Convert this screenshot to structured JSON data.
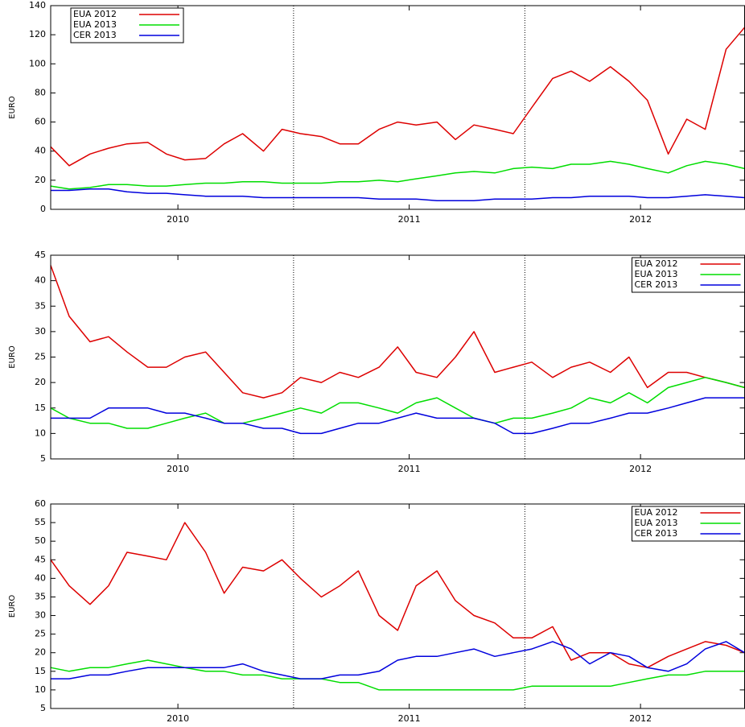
{
  "chart_data": [
    {
      "type": "line",
      "ylabel": "EURO",
      "legend": "top-left",
      "x": [
        2009.95,
        2010.03,
        2010.12,
        2010.2,
        2010.28,
        2010.37,
        2010.45,
        2010.53,
        2010.62,
        2010.7,
        2010.78,
        2010.87,
        2010.95,
        2011.03,
        2011.12,
        2011.2,
        2011.28,
        2011.37,
        2011.45,
        2011.53,
        2011.62,
        2011.7,
        2011.78,
        2011.87,
        2011.95,
        2012.03,
        2012.12,
        2012.2,
        2012.28,
        2012.37,
        2012.45,
        2012.53,
        2012.62,
        2012.7,
        2012.78,
        2012.87,
        2012.95
      ],
      "series": [
        {
          "name": "EUA 2012",
          "color": "#dd0000",
          "values": [
            43,
            30,
            38,
            42,
            45,
            46,
            38,
            34,
            35,
            45,
            52,
            40,
            55,
            52,
            50,
            45,
            45,
            55,
            60,
            58,
            60,
            48,
            58,
            55,
            52,
            70,
            90,
            95,
            88,
            98,
            88,
            75,
            38,
            62,
            55,
            110,
            125
          ]
        },
        {
          "name": "EUA 2013",
          "color": "#00dd00",
          "values": [
            16,
            14,
            15,
            17,
            17,
            16,
            16,
            17,
            18,
            18,
            19,
            19,
            18,
            18,
            18,
            19,
            19,
            20,
            19,
            21,
            23,
            25,
            26,
            25,
            28,
            29,
            28,
            31,
            31,
            33,
            31,
            28,
            25,
            30,
            33,
            31,
            28
          ]
        },
        {
          "name": "CER 2013",
          "color": "#0000dd",
          "values": [
            13,
            13,
            14,
            14,
            12,
            11,
            11,
            10,
            9,
            9,
            9,
            8,
            8,
            8,
            8,
            8,
            8,
            7,
            7,
            7,
            6,
            6,
            6,
            7,
            7,
            7,
            8,
            8,
            9,
            9,
            9,
            8,
            8,
            9,
            10,
            9,
            8
          ]
        }
      ],
      "xlim": [
        2009.95,
        2012.95
      ],
      "xticks": [
        {
          "value": 2010.5,
          "label": "2010"
        },
        {
          "value": 2011.5,
          "label": "2011"
        },
        {
          "value": 2012.5,
          "label": "2012"
        }
      ],
      "vlines": [
        2011,
        2012
      ],
      "ylim": [
        0,
        140
      ],
      "yticks": [
        0,
        20,
        40,
        60,
        80,
        100,
        120,
        140
      ]
    },
    {
      "type": "line",
      "ylabel": "EURO",
      "legend": "top-right",
      "x": [
        2009.95,
        2010.03,
        2010.12,
        2010.2,
        2010.28,
        2010.37,
        2010.45,
        2010.53,
        2010.62,
        2010.7,
        2010.78,
        2010.87,
        2010.95,
        2011.03,
        2011.12,
        2011.2,
        2011.28,
        2011.37,
        2011.45,
        2011.53,
        2011.62,
        2011.7,
        2011.78,
        2011.87,
        2011.95,
        2012.03,
        2012.12,
        2012.2,
        2012.28,
        2012.37,
        2012.45,
        2012.53,
        2012.62,
        2012.7,
        2012.78,
        2012.87,
        2012.95
      ],
      "series": [
        {
          "name": "EUA 2012",
          "color": "#dd0000",
          "values": [
            43,
            33,
            28,
            29,
            26,
            23,
            23,
            25,
            26,
            22,
            18,
            17,
            18,
            21,
            20,
            22,
            21,
            23,
            27,
            22,
            21,
            25,
            30,
            22,
            23,
            24,
            21,
            23,
            24,
            22,
            25,
            19,
            22,
            22,
            21,
            20,
            19
          ]
        },
        {
          "name": "EUA 2013",
          "color": "#00dd00",
          "values": [
            15,
            13,
            12,
            12,
            11,
            11,
            12,
            13,
            14,
            12,
            12,
            13,
            14,
            15,
            14,
            16,
            16,
            15,
            14,
            16,
            17,
            15,
            13,
            12,
            13,
            13,
            14,
            15,
            17,
            16,
            18,
            16,
            19,
            20,
            21,
            20,
            19
          ]
        },
        {
          "name": "CER 2013",
          "color": "#0000dd",
          "values": [
            13,
            13,
            13,
            15,
            15,
            15,
            14,
            14,
            13,
            12,
            12,
            11,
            11,
            10,
            10,
            11,
            12,
            12,
            13,
            14,
            13,
            13,
            13,
            12,
            10,
            10,
            11,
            12,
            12,
            13,
            14,
            14,
            15,
            16,
            17,
            17,
            17
          ]
        }
      ],
      "xlim": [
        2009.95,
        2012.95
      ],
      "xticks": [
        {
          "value": 2010.5,
          "label": "2010"
        },
        {
          "value": 2011.5,
          "label": "2011"
        },
        {
          "value": 2012.5,
          "label": "2012"
        }
      ],
      "vlines": [
        2011,
        2012
      ],
      "ylim": [
        5,
        45
      ],
      "yticks": [
        5,
        10,
        15,
        20,
        25,
        30,
        35,
        40,
        45
      ]
    },
    {
      "type": "line",
      "ylabel": "EURO",
      "legend": "top-right",
      "x": [
        2009.95,
        2010.03,
        2010.12,
        2010.2,
        2010.28,
        2010.37,
        2010.45,
        2010.53,
        2010.62,
        2010.7,
        2010.78,
        2010.87,
        2010.95,
        2011.03,
        2011.12,
        2011.2,
        2011.28,
        2011.37,
        2011.45,
        2011.53,
        2011.62,
        2011.7,
        2011.78,
        2011.87,
        2011.95,
        2012.03,
        2012.12,
        2012.2,
        2012.28,
        2012.37,
        2012.45,
        2012.53,
        2012.62,
        2012.7,
        2012.78,
        2012.87,
        2012.95
      ],
      "series": [
        {
          "name": "EUA 2012",
          "color": "#dd0000",
          "values": [
            45,
            38,
            33,
            38,
            47,
            46,
            45,
            55,
            47,
            36,
            43,
            42,
            45,
            40,
            35,
            38,
            42,
            30,
            26,
            38,
            42,
            34,
            30,
            28,
            24,
            24,
            27,
            18,
            20,
            20,
            17,
            16,
            19,
            21,
            23,
            22,
            20
          ]
        },
        {
          "name": "EUA 2013",
          "color": "#00dd00",
          "values": [
            16,
            15,
            16,
            16,
            17,
            18,
            17,
            16,
            15,
            15,
            14,
            14,
            13,
            13,
            13,
            12,
            12,
            10,
            10,
            10,
            10,
            10,
            10,
            10,
            10,
            11,
            11,
            11,
            11,
            11,
            12,
            13,
            14,
            14,
            15,
            15,
            15
          ]
        },
        {
          "name": "CER 2013",
          "color": "#0000dd",
          "values": [
            13,
            13,
            14,
            14,
            15,
            16,
            16,
            16,
            16,
            16,
            17,
            15,
            14,
            13,
            13,
            14,
            14,
            15,
            18,
            19,
            19,
            20,
            21,
            19,
            20,
            21,
            23,
            21,
            17,
            20,
            19,
            16,
            15,
            17,
            21,
            23,
            20
          ]
        }
      ],
      "xlim": [
        2009.95,
        2012.95
      ],
      "xticks": [
        {
          "value": 2010.5,
          "label": "2010"
        },
        {
          "value": 2011.5,
          "label": "2011"
        },
        {
          "value": 2012.5,
          "label": "2012"
        }
      ],
      "vlines": [
        2011,
        2012
      ],
      "ylim": [
        5,
        60
      ],
      "yticks": [
        5,
        10,
        15,
        20,
        25,
        30,
        35,
        40,
        45,
        50,
        55,
        60
      ]
    }
  ]
}
